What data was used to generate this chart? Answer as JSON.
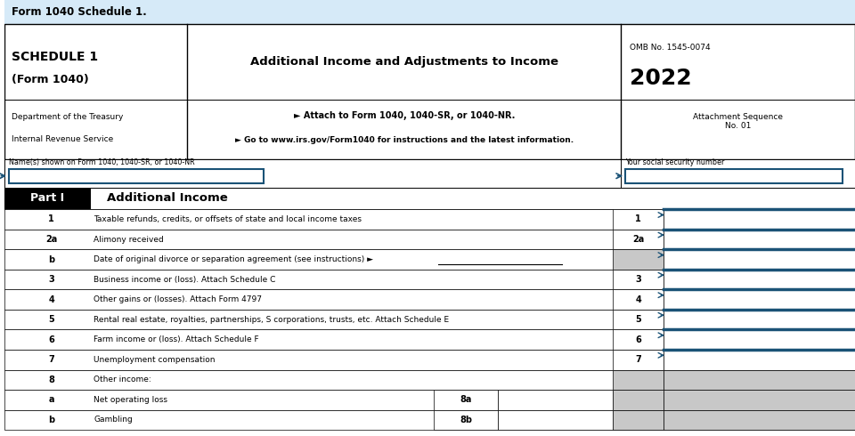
{
  "title_bar_text": "Form 1040 Schedule 1.",
  "title_bar_bg": "#d6eaf8",
  "center_title": "Additional Income and Adjustments to Income",
  "center_line1": "► Attach to Form 1040, 1040-SR, or 1040-NR.",
  "center_line2": "► Go to www.irs.gov/Form1040 for instructions and the latest information.",
  "omb_text": "OMB No. 1545-0074",
  "year_text": "2022",
  "attach_seq": "Attachment Sequence\nNo. 01",
  "names_label": "Name(s) shown on Form 1040, 1040-SR, or 1040-NR",
  "ssn_label": "Your social security number",
  "part_label": "Part I",
  "part_title": "Additional Income",
  "rows": [
    {
      "num": "1",
      "desc": "Taxable refunds, credits, or offsets of state and local income taxes",
      "gray_num": false,
      "gray_right": false,
      "sub_label": null
    },
    {
      "num": "2a",
      "desc": "Alimony received",
      "gray_num": false,
      "gray_right": false,
      "sub_label": null
    },
    {
      "num": "b",
      "desc": "Date of original divorce or separation agreement (see instructions) ►",
      "gray_num": true,
      "gray_right": false,
      "sub_label": null,
      "is_2b": true
    },
    {
      "num": "3",
      "desc": "Business income or (loss). Attach Schedule C",
      "gray_num": false,
      "gray_right": false,
      "sub_label": null
    },
    {
      "num": "4",
      "desc": "Other gains or (losses). Attach Form 4797",
      "gray_num": false,
      "gray_right": false,
      "sub_label": null
    },
    {
      "num": "5",
      "desc": "Rental real estate, royalties, partnerships, S corporations, trusts, etc. Attach Schedule E",
      "gray_num": false,
      "gray_right": false,
      "sub_label": null
    },
    {
      "num": "6",
      "desc": "Farm income or (loss). Attach Schedule F",
      "gray_num": false,
      "gray_right": false,
      "sub_label": null
    },
    {
      "num": "7",
      "desc": "Unemployment compensation",
      "gray_num": false,
      "gray_right": false,
      "sub_label": null
    },
    {
      "num": "8",
      "desc": "Other income:",
      "gray_num": true,
      "gray_right": true,
      "sub_label": null,
      "is_8": true
    },
    {
      "num": "a",
      "desc": "Net operating loss",
      "gray_num": true,
      "gray_right": true,
      "sub_label": "8a"
    },
    {
      "num": "b",
      "desc": "Gambling",
      "gray_num": true,
      "gray_right": true,
      "sub_label": "8b"
    }
  ],
  "bg_white": "#ffffff",
  "bg_gray": "#c8c8c8",
  "bg_light_blue": "#d6eaf8",
  "blue_accent": "#1a5276",
  "black": "#000000"
}
